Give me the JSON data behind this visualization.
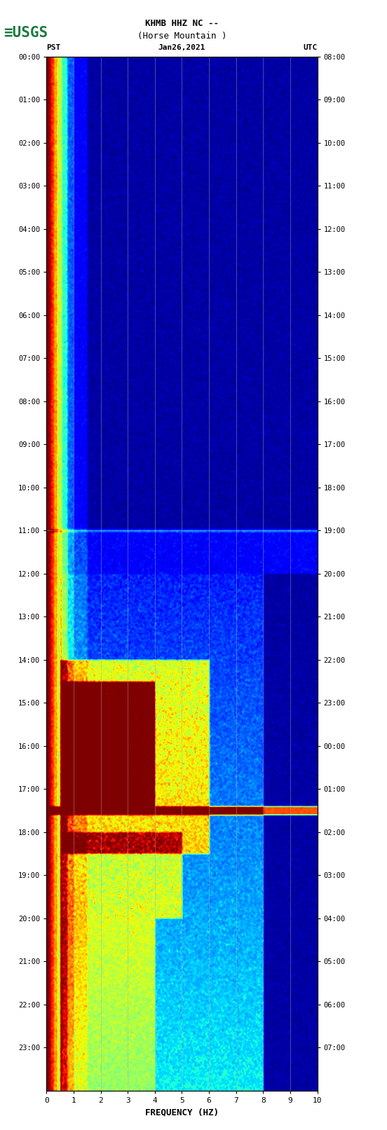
{
  "title_line1": "KHMB HHZ NC --",
  "title_line2": "(Horse Mountain )",
  "date_label": "Jan26,2021",
  "tz_left": "PST",
  "tz_right": "UTC",
  "freq_label": "FREQUENCY (HZ)",
  "freq_min": 0,
  "freq_max": 10,
  "freq_ticks": [
    0,
    1,
    2,
    3,
    4,
    5,
    6,
    7,
    8,
    9,
    10
  ],
  "pst_tick_labels": [
    "00:00",
    "01:00",
    "02:00",
    "03:00",
    "04:00",
    "05:00",
    "06:00",
    "07:00",
    "08:00",
    "09:00",
    "10:00",
    "11:00",
    "12:00",
    "13:00",
    "14:00",
    "15:00",
    "16:00",
    "17:00",
    "18:00",
    "19:00",
    "20:00",
    "21:00",
    "22:00",
    "23:00"
  ],
  "utc_tick_labels": [
    "08:00",
    "09:00",
    "10:00",
    "11:00",
    "12:00",
    "13:00",
    "14:00",
    "15:00",
    "16:00",
    "17:00",
    "18:00",
    "19:00",
    "20:00",
    "21:00",
    "22:00",
    "23:00",
    "00:00",
    "01:00",
    "02:00",
    "03:00",
    "04:00",
    "05:00",
    "06:00",
    "07:00"
  ],
  "fig_width": 5.52,
  "fig_height": 16.13,
  "usgs_color": "#1a7a3e",
  "grid_color": "#888888"
}
